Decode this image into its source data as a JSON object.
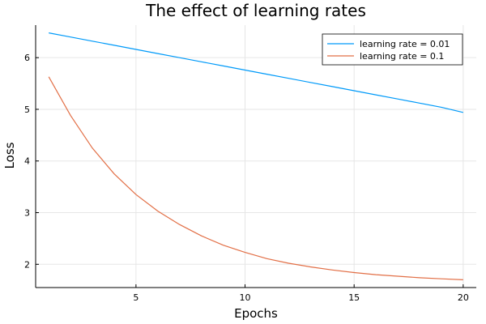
{
  "chart_data": {
    "type": "line",
    "title": "The effect of learning rates",
    "xlabel": "Epochs",
    "ylabel": "Loss",
    "xlim": [
      0.4,
      20.6
    ],
    "ylim": [
      1.55,
      6.63
    ],
    "xticks": [
      5,
      10,
      15,
      20
    ],
    "yticks": [
      2,
      3,
      4,
      5,
      6
    ],
    "grid": true,
    "legend_position": "top-right",
    "x": [
      1,
      2,
      3,
      4,
      5,
      6,
      7,
      8,
      9,
      10,
      11,
      12,
      13,
      14,
      15,
      16,
      17,
      18,
      19,
      20
    ],
    "series": [
      {
        "name": "learning rate = 0.01",
        "color": "#009af9",
        "values": [
          6.48,
          6.4,
          6.32,
          6.24,
          6.16,
          6.08,
          6.0,
          5.92,
          5.84,
          5.76,
          5.68,
          5.6,
          5.52,
          5.44,
          5.36,
          5.28,
          5.2,
          5.12,
          5.04,
          4.94
        ]
      },
      {
        "name": "learning rate = 0.1",
        "color": "#e26f46",
        "values": [
          5.63,
          4.88,
          4.25,
          3.75,
          3.35,
          3.03,
          2.77,
          2.55,
          2.37,
          2.23,
          2.11,
          2.02,
          1.95,
          1.89,
          1.84,
          1.8,
          1.77,
          1.74,
          1.72,
          1.7
        ]
      }
    ]
  }
}
